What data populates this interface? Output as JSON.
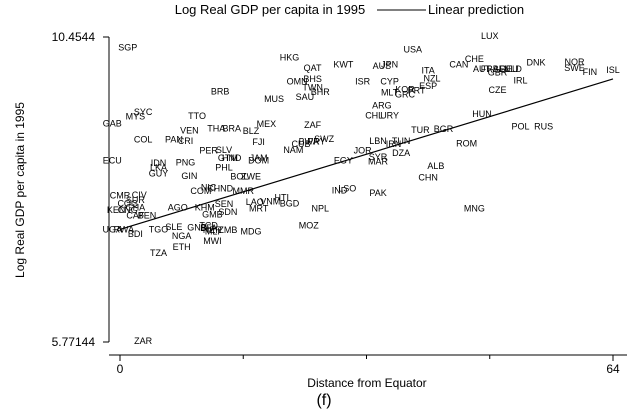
{
  "chart_data": {
    "type": "scatter",
    "xlabel": "Distance from Equator",
    "ylabel": "Log Real GDP per capita in 1995",
    "xlim": [
      0,
      64
    ],
    "ylim": [
      5.77144,
      10.4544
    ],
    "x_ticks": [
      0,
      64
    ],
    "x_tick_labels": [
      "0",
      "64"
    ],
    "y_ticks": [
      10.4544,
      5.77144
    ],
    "y_tick_labels": [
      "10.4544",
      "5.77144"
    ],
    "legend": [
      "Log Real GDP per capita in 1995",
      "Linear prediction"
    ],
    "legend_position": "top",
    "caption": "(f)",
    "fit_line": {
      "x": [
        0,
        64
      ],
      "y": [
        7.5,
        9.81
      ]
    },
    "points": [
      {
        "label": "SGP",
        "x": 1,
        "y": 10.29
      },
      {
        "label": "HKG",
        "x": 22,
        "y": 10.14
      },
      {
        "label": "QAT",
        "x": 25,
        "y": 9.98
      },
      {
        "label": "KWT",
        "x": 29,
        "y": 10.03
      },
      {
        "label": "USA",
        "x": 38,
        "y": 10.26
      },
      {
        "label": "AUS",
        "x": 34,
        "y": 10.01
      },
      {
        "label": "JPN",
        "x": 35,
        "y": 10.03
      },
      {
        "label": "LUX",
        "x": 48,
        "y": 10.47
      },
      {
        "label": "CHE",
        "x": 46,
        "y": 10.12
      },
      {
        "label": "CAN",
        "x": 44,
        "y": 10.03
      },
      {
        "label": "DNK",
        "x": 54,
        "y": 10.06
      },
      {
        "label": "NOR",
        "x": 59,
        "y": 10.07
      },
      {
        "label": "ISL",
        "x": 64,
        "y": 9.95
      },
      {
        "label": "SWE",
        "x": 59,
        "y": 9.98
      },
      {
        "label": "FIN",
        "x": 61,
        "y": 9.92
      },
      {
        "label": "AUT",
        "x": 47,
        "y": 9.96
      },
      {
        "label": "FRA",
        "x": 48,
        "y": 9.96
      },
      {
        "label": "BEL",
        "x": 49.5,
        "y": 9.96
      },
      {
        "label": "DEU",
        "x": 50.5,
        "y": 9.96
      },
      {
        "label": "NLD",
        "x": 51,
        "y": 9.96
      },
      {
        "label": "GBR",
        "x": 49,
        "y": 9.91
      },
      {
        "label": "IRL",
        "x": 52,
        "y": 9.79
      },
      {
        "label": "ITA",
        "x": 40,
        "y": 9.94
      },
      {
        "label": "NZL",
        "x": 40.5,
        "y": 9.82
      },
      {
        "label": "ISR",
        "x": 31.5,
        "y": 9.77
      },
      {
        "label": "CYP",
        "x": 35,
        "y": 9.77
      },
      {
        "label": "ESP",
        "x": 40,
        "y": 9.7
      },
      {
        "label": "KOR",
        "x": 37,
        "y": 9.65
      },
      {
        "label": "PRT",
        "x": 38.5,
        "y": 9.63
      },
      {
        "label": "MLT",
        "x": 35,
        "y": 9.6
      },
      {
        "label": "GRC",
        "x": 37,
        "y": 9.57
      },
      {
        "label": "CZE",
        "x": 49,
        "y": 9.64
      },
      {
        "label": "OMN",
        "x": 23,
        "y": 9.77
      },
      {
        "label": "BHS",
        "x": 25,
        "y": 9.81
      },
      {
        "label": "TWN",
        "x": 25,
        "y": 9.68
      },
      {
        "label": "BHR",
        "x": 26,
        "y": 9.61
      },
      {
        "label": "SAU",
        "x": 24,
        "y": 9.53
      },
      {
        "label": "MUS",
        "x": 20,
        "y": 9.5
      },
      {
        "label": "BRB",
        "x": 13,
        "y": 9.62
      },
      {
        "label": "ARG",
        "x": 34,
        "y": 9.4
      },
      {
        "label": "CHL",
        "x": 33,
        "y": 9.25
      },
      {
        "label": "URY",
        "x": 35,
        "y": 9.25
      },
      {
        "label": "HUN",
        "x": 47,
        "y": 9.27
      },
      {
        "label": "POL",
        "x": 52,
        "y": 9.08
      },
      {
        "label": "RUS",
        "x": 55,
        "y": 9.08
      },
      {
        "label": "TUR",
        "x": 39,
        "y": 9.03
      },
      {
        "label": "BGR",
        "x": 42,
        "y": 9.04
      },
      {
        "label": "ZAF",
        "x": 25,
        "y": 9.1
      },
      {
        "label": "MEX",
        "x": 19,
        "y": 9.12
      },
      {
        "label": "SYC",
        "x": 3,
        "y": 9.3
      },
      {
        "label": "MYS",
        "x": 2,
        "y": 9.23
      },
      {
        "label": "GAB",
        "x": -1,
        "y": 9.13
      },
      {
        "label": "TTO",
        "x": 10,
        "y": 9.24
      },
      {
        "label": "THA",
        "x": 12.5,
        "y": 9.05
      },
      {
        "label": "BRA",
        "x": 14.5,
        "y": 9.05
      },
      {
        "label": "BLZ",
        "x": 17,
        "y": 9.01
      },
      {
        "label": "VEN",
        "x": 9,
        "y": 9.02
      },
      {
        "label": "COL",
        "x": 3,
        "y": 8.88
      },
      {
        "label": "PAN",
        "x": 7,
        "y": 8.88
      },
      {
        "label": "CRI",
        "x": 8.5,
        "y": 8.86
      },
      {
        "label": "FJI",
        "x": 18,
        "y": 8.84
      },
      {
        "label": "BWA",
        "x": 24.5,
        "y": 8.85
      },
      {
        "label": "PRY",
        "x": 25.5,
        "y": 8.85
      },
      {
        "label": "SWZ",
        "x": 26.5,
        "y": 8.89
      },
      {
        "label": "CUB",
        "x": 23.5,
        "y": 8.81
      },
      {
        "label": "NAM",
        "x": 22.5,
        "y": 8.72
      },
      {
        "label": "LBN",
        "x": 33.5,
        "y": 8.86
      },
      {
        "label": "TUN",
        "x": 36.5,
        "y": 8.86
      },
      {
        "label": "IRN",
        "x": 35.5,
        "y": 8.81
      },
      {
        "label": "ROM",
        "x": 45,
        "y": 8.82
      },
      {
        "label": "JOR",
        "x": 31.5,
        "y": 8.71
      },
      {
        "label": "DZA",
        "x": 36.5,
        "y": 8.67
      },
      {
        "label": "SYR",
        "x": 33.5,
        "y": 8.61
      },
      {
        "label": "MAR",
        "x": 33.5,
        "y": 8.54
      },
      {
        "label": "EGY",
        "x": 29,
        "y": 8.56
      },
      {
        "label": "ALB",
        "x": 41,
        "y": 8.47
      },
      {
        "label": "CHN",
        "x": 40,
        "y": 8.3
      },
      {
        "label": "ECU",
        "x": -1,
        "y": 8.56
      },
      {
        "label": "PER",
        "x": 11.5,
        "y": 8.71
      },
      {
        "label": "SLV",
        "x": 13.5,
        "y": 8.72
      },
      {
        "label": "GTM",
        "x": 14,
        "y": 8.6
      },
      {
        "label": "HND",
        "x": 14.5,
        "y": 8.6
      },
      {
        "label": "JAM",
        "x": 18,
        "y": 8.6
      },
      {
        "label": "DOM",
        "x": 18,
        "y": 8.56
      },
      {
        "label": "IDN",
        "x": 5,
        "y": 8.52
      },
      {
        "label": "PNG",
        "x": 8.5,
        "y": 8.53
      },
      {
        "label": "LKA",
        "x": 5,
        "y": 8.45
      },
      {
        "label": "GUY",
        "x": 5,
        "y": 8.36
      },
      {
        "label": "PHL",
        "x": 13.5,
        "y": 8.45
      },
      {
        "label": "GIN",
        "x": 9,
        "y": 8.32
      },
      {
        "label": "BOL",
        "x": 15.5,
        "y": 8.31
      },
      {
        "label": "ZWE",
        "x": 17,
        "y": 8.31
      },
      {
        "label": "CIV",
        "x": 2.5,
        "y": 8.03
      },
      {
        "label": "NIC",
        "x": 11.5,
        "y": 8.14
      },
      {
        "label": "IND",
        "x": 28.5,
        "y": 8.1
      },
      {
        "label": "LSO",
        "x": 29.5,
        "y": 8.13
      },
      {
        "label": "PAK",
        "x": 33.5,
        "y": 8.06
      },
      {
        "label": "COM",
        "x": 10.5,
        "y": 8.09
      },
      {
        "label": "CHND",
        "x": 13,
        "y": 8.13
      },
      {
        "label": "MMR",
        "x": 16,
        "y": 8.09
      },
      {
        "label": "CMR",
        "x": 0,
        "y": 8.02
      },
      {
        "label": "SUR",
        "x": 2,
        "y": 7.95
      },
      {
        "label": "COG",
        "x": 1,
        "y": 7.9
      },
      {
        "label": "GHA",
        "x": 2,
        "y": 7.84
      },
      {
        "label": "KEN",
        "x": -0.5,
        "y": 7.8
      },
      {
        "label": "CNG",
        "x": 1,
        "y": 7.8
      },
      {
        "label": "CAF",
        "x": 2,
        "y": 7.71
      },
      {
        "label": "BEN",
        "x": 3.5,
        "y": 7.71
      },
      {
        "label": "AGO",
        "x": 7.5,
        "y": 7.84
      },
      {
        "label": "KHM",
        "x": 11,
        "y": 7.84
      },
      {
        "label": "SEN",
        "x": 13.5,
        "y": 7.89
      },
      {
        "label": "LAO",
        "x": 17.5,
        "y": 7.92
      },
      {
        "label": "HTI",
        "x": 21,
        "y": 7.99
      },
      {
        "label": "VNM",
        "x": 19.5,
        "y": 7.93
      },
      {
        "label": "BGD",
        "x": 22,
        "y": 7.9
      },
      {
        "label": "MRT",
        "x": 18,
        "y": 7.82
      },
      {
        "label": "SDN",
        "x": 14,
        "y": 7.77
      },
      {
        "label": "GMB",
        "x": 12,
        "y": 7.73
      },
      {
        "label": "NPL",
        "x": 26,
        "y": 7.82
      },
      {
        "label": "MNG",
        "x": 46,
        "y": 7.82
      },
      {
        "label": "UGA",
        "x": -1,
        "y": 7.5
      },
      {
        "label": "RWA",
        "x": 0.5,
        "y": 7.5
      },
      {
        "label": "BDI",
        "x": 2,
        "y": 7.43
      },
      {
        "label": "TGO",
        "x": 5,
        "y": 7.5
      },
      {
        "label": "SLE",
        "x": 7,
        "y": 7.54
      },
      {
        "label": "GNB",
        "x": 10,
        "y": 7.53
      },
      {
        "label": "TCD",
        "x": 11.5,
        "y": 7.56
      },
      {
        "label": "BFA",
        "x": 11.5,
        "y": 7.52
      },
      {
        "label": "NER",
        "x": 12,
        "y": 7.49
      },
      {
        "label": "MLI",
        "x": 12,
        "y": 7.47
      },
      {
        "label": "ZMB",
        "x": 14,
        "y": 7.49
      },
      {
        "label": "MDG",
        "x": 17,
        "y": 7.47
      },
      {
        "label": "MOZ",
        "x": 24.5,
        "y": 7.56
      },
      {
        "label": "NGA",
        "x": 8,
        "y": 7.4
      },
      {
        "label": "MWI",
        "x": 12,
        "y": 7.32
      },
      {
        "label": "ETH",
        "x": 8,
        "y": 7.23
      },
      {
        "label": "TZA",
        "x": 5,
        "y": 7.14
      },
      {
        "label": "ZAR",
        "x": 3,
        "y": 5.79
      }
    ]
  }
}
